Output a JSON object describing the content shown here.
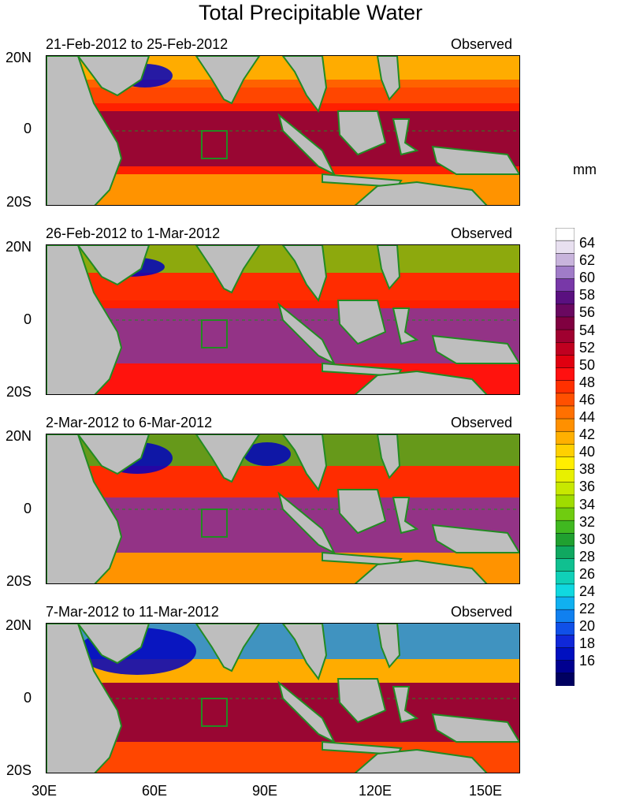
{
  "title": "Total Precipitable Water",
  "units": "mm",
  "panels": [
    {
      "date_range": "21-Feb-2012 to 25-Feb-2012",
      "label": "Observed"
    },
    {
      "date_range": "26-Feb-2012 to 1-Mar-2012",
      "label": "Observed"
    },
    {
      "date_range": "2-Mar-2012 to 6-Mar-2012",
      "label": "Observed"
    },
    {
      "date_range": "7-Mar-2012 to 11-Mar-2012",
      "label": "Observed"
    }
  ],
  "lat_labels": [
    "20N",
    "0",
    "20S"
  ],
  "lon_labels": [
    "30E",
    "60E",
    "90E",
    "120E",
    "150E"
  ],
  "colorbar_labels": [
    "64",
    "62",
    "60",
    "58",
    "56",
    "54",
    "52",
    "50",
    "48",
    "46",
    "44",
    "42",
    "40",
    "38",
    "36",
    "34",
    "32",
    "30",
    "28",
    "26",
    "24",
    "22",
    "20",
    "18",
    "16"
  ],
  "colors": {
    "land": "#bebebe",
    "coast": "#228b22",
    "dry": "#0000c0",
    "moist": "#8b0040"
  }
}
